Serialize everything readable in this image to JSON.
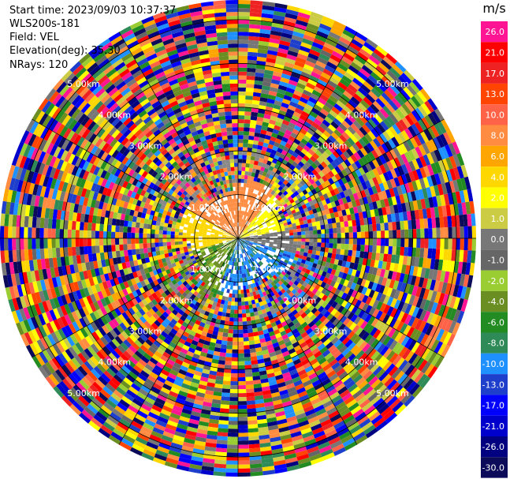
{
  "header": {
    "start_time": "Start time: 2023/09/03 10:37:37",
    "instrument": "WLS200s-181",
    "field": "Field: VEL",
    "elevation": "Elevation(deg): 35.30",
    "nrays": "NRays: 120"
  },
  "chart_data": {
    "type": "polar-ppi",
    "field": "VEL",
    "units": "m/s",
    "nrays": 120,
    "elevation_deg": 35.3,
    "range_ring_labels": [
      "1.00km",
      "2.00km",
      "3.00km",
      "4.00km",
      "5.00km"
    ],
    "near_field_pattern": {
      "north_sector_ms": 8.0,
      "northeast_sector_ms": 2.0,
      "east_band_ms": 0.0,
      "south_sector_ms": -10.0,
      "southwest_sector_ms": -4.0,
      "west_band_ms": 4.0
    },
    "colorbar": {
      "unit_label": "m/s",
      "ticks": [
        "26.0",
        "21.0",
        "17.0",
        "13.0",
        "10.0",
        "8.0",
        "6.0",
        "4.0",
        "2.0",
        "1.0",
        "0.0",
        "-1.0",
        "-2.0",
        "-4.0",
        "-6.0",
        "-8.0",
        "-10.0",
        "-13.0",
        "-17.0",
        "-21.0",
        "-26.0",
        "-30.0"
      ],
      "colors": [
        "#ff1493",
        "#ff0000",
        "#ee2222",
        "#ff4500",
        "#ff6347",
        "#ff8c40",
        "#ffa500",
        "#ffd700",
        "#ffff00",
        "#cccc44",
        "#777777",
        "#666666",
        "#9acd32",
        "#6b8e23",
        "#228b22",
        "#2e8b57",
        "#1e90ff",
        "#1e3fcc",
        "#0000ff",
        "#0000cd",
        "#000080",
        "#0b0b5a"
      ]
    }
  }
}
